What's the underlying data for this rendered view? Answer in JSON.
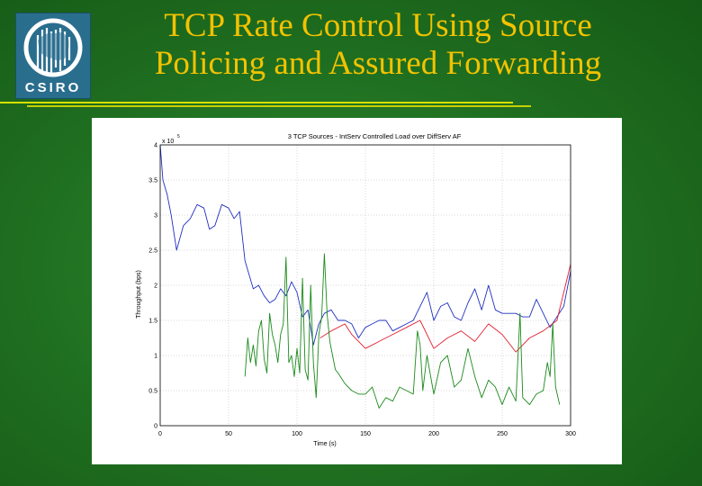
{
  "slide": {
    "title": "TCP Rate Control Using Source Policing and Assured Forwarding",
    "logo_text": "CSIRO",
    "colors": {
      "title": "#f2c200",
      "background": "#1f6e20",
      "logo": "#2a6e8e"
    }
  },
  "chart_data": {
    "type": "line",
    "title": "3 TCP Sources - IntServ Controlled Load over DiffServ AF",
    "xlabel": "Time (s)",
    "ylabel": "Throughput (bps)",
    "y_exponent_label": "x 10",
    "y_exponent": "5",
    "xlim": [
      0,
      300
    ],
    "ylim": [
      0,
      4
    ],
    "xticks": [
      "0",
      "50",
      "100",
      "150",
      "200",
      "250",
      "300"
    ],
    "yticks": [
      "0",
      "0.5",
      "1",
      "1.5",
      "2",
      "2.5",
      "3",
      "3.5",
      "4"
    ],
    "grid": true,
    "series": [
      {
        "color": "#2030c0",
        "x": [
          0,
          2,
          5,
          8,
          12,
          17,
          22,
          27,
          32,
          36,
          40,
          45,
          50,
          54,
          58,
          62,
          65,
          68,
          72,
          76,
          80,
          84,
          88,
          92,
          96,
          100,
          104,
          108,
          112,
          116,
          120,
          125,
          130,
          135,
          140,
          145,
          150,
          155,
          160,
          165,
          170,
          175,
          180,
          185,
          190,
          195,
          200,
          205,
          210,
          215,
          220,
          225,
          230,
          235,
          240,
          245,
          250,
          255,
          260,
          265,
          270,
          275,
          280,
          285,
          290,
          295,
          300
        ],
        "y": [
          4.0,
          3.5,
          3.3,
          3.0,
          2.5,
          2.85,
          2.95,
          3.15,
          3.1,
          2.8,
          2.85,
          3.15,
          3.1,
          2.95,
          3.05,
          2.35,
          2.15,
          1.95,
          2.0,
          1.85,
          1.75,
          1.8,
          1.95,
          1.85,
          2.05,
          1.9,
          1.55,
          1.65,
          1.15,
          1.45,
          1.6,
          1.65,
          1.5,
          1.5,
          1.45,
          1.25,
          1.4,
          1.45,
          1.5,
          1.5,
          1.35,
          1.4,
          1.45,
          1.5,
          1.7,
          1.9,
          1.5,
          1.7,
          1.75,
          1.55,
          1.5,
          1.75,
          1.95,
          1.65,
          2.0,
          1.65,
          1.6,
          1.6,
          1.6,
          1.55,
          1.55,
          1.8,
          1.6,
          1.4,
          1.55,
          1.7,
          2.2
        ]
      },
      {
        "color": "#e02030",
        "x": [
          117,
          125,
          135,
          140,
          150,
          160,
          170,
          180,
          190,
          200,
          210,
          220,
          230,
          240,
          250,
          260,
          270,
          280,
          290,
          300
        ],
        "y": [
          1.25,
          1.35,
          1.45,
          1.3,
          1.1,
          1.2,
          1.3,
          1.4,
          1.5,
          1.1,
          1.25,
          1.35,
          1.2,
          1.45,
          1.3,
          1.05,
          1.25,
          1.35,
          1.5,
          2.3
        ]
      },
      {
        "color": "#1a8a1a",
        "x": [
          62,
          64,
          66,
          68,
          70,
          72,
          74,
          76,
          78,
          80,
          82,
          84,
          86,
          88,
          90,
          92,
          94,
          96,
          98,
          100,
          102,
          104,
          106,
          108,
          110,
          112,
          114,
          116,
          118,
          120,
          122,
          124,
          126,
          128,
          130,
          135,
          140,
          145,
          150,
          155,
          160,
          165,
          170,
          175,
          180,
          185,
          188,
          190,
          192,
          195,
          200,
          205,
          210,
          215,
          220,
          225,
          230,
          235,
          240,
          245,
          250,
          255,
          260,
          263,
          265,
          270,
          275,
          280,
          283,
          285,
          287,
          289,
          292
        ],
        "y": [
          0.7,
          1.25,
          0.9,
          1.15,
          0.85,
          1.35,
          1.5,
          0.95,
          0.75,
          1.6,
          1.3,
          1.15,
          0.9,
          1.3,
          1.45,
          2.4,
          0.9,
          1.0,
          0.7,
          1.1,
          0.75,
          2.1,
          0.8,
          0.65,
          2.0,
          0.9,
          0.4,
          1.3,
          1.55,
          2.45,
          1.6,
          1.2,
          1.0,
          0.8,
          0.75,
          0.6,
          0.5,
          0.45,
          0.45,
          0.55,
          0.25,
          0.4,
          0.35,
          0.55,
          0.5,
          0.45,
          1.35,
          1.15,
          0.5,
          1.0,
          0.45,
          0.9,
          1.0,
          0.55,
          0.65,
          1.1,
          0.7,
          0.4,
          0.65,
          0.55,
          0.3,
          0.55,
          0.35,
          1.6,
          0.4,
          0.3,
          0.45,
          0.5,
          0.9,
          0.7,
          1.45,
          0.55,
          0.3
        ]
      }
    ]
  }
}
